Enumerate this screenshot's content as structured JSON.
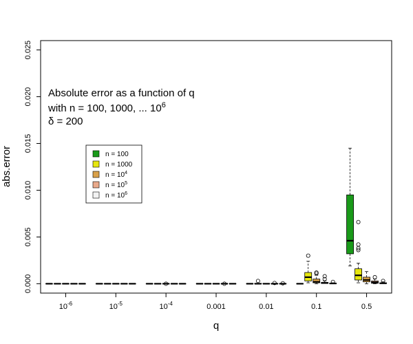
{
  "chart_data": {
    "type": "boxplot",
    "xlabel": "q",
    "ylabel": "abs.error",
    "ylim": [
      -0.001,
      0.026
    ],
    "yticks": [
      "0.000",
      "0.005",
      "0.010",
      "0.015",
      "0.020",
      "0.025"
    ],
    "ytick_values": [
      0,
      0.005,
      0.01,
      0.015,
      0.02,
      0.025
    ],
    "categories": [
      {
        "base": "10",
        "exp": "-6"
      },
      {
        "base": "10",
        "exp": "-5"
      },
      {
        "base": "10",
        "exp": "-4"
      },
      {
        "base": "0.001",
        "exp": ""
      },
      {
        "base": "0.01",
        "exp": ""
      },
      {
        "base": "0.1",
        "exp": ""
      },
      {
        "base": "0.5",
        "exp": ""
      }
    ],
    "annotation": {
      "line1": "Absolute error as a function of q",
      "line2_text": "with n = 100, 1000, ... 10",
      "line2_exp": "6",
      "line3": "δ = 200"
    },
    "legend": {
      "position": "left-middle",
      "entries": [
        {
          "base": "n = 100",
          "exp": ""
        },
        {
          "base": "n = 1000",
          "exp": ""
        },
        {
          "base": "n = 10",
          "exp": "4"
        },
        {
          "base": "n = 10",
          "exp": "5"
        },
        {
          "base": "n = 10",
          "exp": "6"
        }
      ]
    },
    "colors": [
      "#1a9a1a",
      "#e6e60f",
      "#d9a14a",
      "#e9a98a",
      "#f2f2f2"
    ],
    "series": [
      {
        "boxes": [
          {
            "q1": 0,
            "med": 0,
            "q3": 0,
            "lo": 0,
            "hi": 0,
            "out": []
          },
          {
            "q1": 0,
            "med": 0,
            "q3": 0,
            "lo": 0,
            "hi": 0,
            "out": []
          },
          {
            "q1": 0,
            "med": 0,
            "q3": 0,
            "lo": 0,
            "hi": 0,
            "out": []
          },
          {
            "q1": 0,
            "med": 0,
            "q3": 0,
            "lo": 0,
            "hi": 0,
            "out": []
          },
          {
            "q1": 0,
            "med": 0,
            "q3": 0,
            "lo": 0,
            "hi": 0,
            "out": []
          },
          {
            "q1": 0,
            "med": 0,
            "q3": 0,
            "lo": 0,
            "hi": 0,
            "out": []
          },
          {
            "q1": 0.0032,
            "med": 0.0046,
            "q3": 0.0095,
            "lo": 0.0019,
            "hi": 0.0145,
            "out": []
          }
        ]
      },
      {
        "boxes": [
          {
            "q1": 0,
            "med": 0,
            "q3": 0,
            "lo": 0,
            "hi": 0,
            "out": []
          },
          {
            "q1": 0,
            "med": 0,
            "q3": 0,
            "lo": 0,
            "hi": 0,
            "out": []
          },
          {
            "q1": 0,
            "med": 0,
            "q3": 0,
            "lo": 0,
            "hi": 0,
            "out": []
          },
          {
            "q1": 0,
            "med": 0,
            "q3": 0,
            "lo": 0,
            "hi": 0,
            "out": []
          },
          {
            "q1": 0,
            "med": 0,
            "q3": 3e-05,
            "lo": 0,
            "hi": 5e-05,
            "out": [
              0.0003
            ]
          },
          {
            "q1": 0.0003,
            "med": 0.0007,
            "q3": 0.0012,
            "lo": 0.0001,
            "hi": 0.0024,
            "out": [
              0.003
            ]
          },
          {
            "q1": 0.0004,
            "med": 0.0009,
            "q3": 0.0016,
            "lo": 0.0001,
            "hi": 0.0022,
            "out": [
              0.0066,
              0.0042,
              0.0038,
              0.0036
            ]
          }
        ]
      },
      {
        "boxes": [
          {
            "q1": 0,
            "med": 0,
            "q3": 0,
            "lo": 0,
            "hi": 0,
            "out": []
          },
          {
            "q1": 0,
            "med": 0,
            "q3": 0,
            "lo": 0,
            "hi": 0,
            "out": []
          },
          {
            "q1": 0,
            "med": 0,
            "q3": 0,
            "lo": 0,
            "hi": 0,
            "out": [
              0
            ]
          },
          {
            "q1": 0,
            "med": 0,
            "q3": 0,
            "lo": 0,
            "hi": 0,
            "out": []
          },
          {
            "q1": 0,
            "med": 0,
            "q3": 2e-05,
            "lo": 0,
            "hi": 4e-05,
            "out": []
          },
          {
            "q1": 0.0001,
            "med": 0.0002,
            "q3": 0.0005,
            "lo": 0,
            "hi": 0.0009,
            "out": [
              0.0012,
              0.0011
            ]
          },
          {
            "q1": 0.0002,
            "med": 0.0004,
            "q3": 0.0007,
            "lo": 0,
            "hi": 0.0013,
            "out": []
          }
        ]
      },
      {
        "boxes": [
          {
            "q1": 0,
            "med": 0,
            "q3": 0,
            "lo": 0,
            "hi": 0,
            "out": []
          },
          {
            "q1": 0,
            "med": 0,
            "q3": 0,
            "lo": 0,
            "hi": 0,
            "out": []
          },
          {
            "q1": 0,
            "med": 0,
            "q3": 0,
            "lo": 0,
            "hi": 0,
            "out": []
          },
          {
            "q1": 0,
            "med": 0,
            "q3": 0,
            "lo": 0,
            "hi": 0,
            "out": [
              0
            ]
          },
          {
            "q1": 0,
            "med": 0,
            "q3": 2e-05,
            "lo": 0,
            "hi": 4e-05,
            "out": [
              8e-05
            ]
          },
          {
            "q1": 3e-05,
            "med": 8e-05,
            "q3": 0.00015,
            "lo": 0,
            "hi": 0.0003,
            "out": [
              0.0008,
              0.0005
            ]
          },
          {
            "q1": 5e-05,
            "med": 0.00015,
            "q3": 0.0003,
            "lo": 0,
            "hi": 0.0005,
            "out": [
              0.0007
            ]
          }
        ]
      },
      {
        "boxes": [
          {
            "q1": 0,
            "med": 0,
            "q3": 0,
            "lo": 0,
            "hi": 0,
            "out": []
          },
          {
            "q1": 0,
            "med": 0,
            "q3": 0,
            "lo": 0,
            "hi": 0,
            "out": []
          },
          {
            "q1": 0,
            "med": 0,
            "q3": 0,
            "lo": 0,
            "hi": 0,
            "out": []
          },
          {
            "q1": 0,
            "med": 0,
            "q3": 0,
            "lo": 0,
            "hi": 0,
            "out": []
          },
          {
            "q1": 0,
            "med": 0,
            "q3": 1e-05,
            "lo": 0,
            "hi": 2e-05,
            "out": [
              5e-05
            ]
          },
          {
            "q1": 1e-05,
            "med": 3e-05,
            "q3": 6e-05,
            "lo": 0,
            "hi": 0.0001,
            "out": [
              0.0002
            ]
          },
          {
            "q1": 2e-05,
            "med": 5e-05,
            "q3": 0.0001,
            "lo": 0,
            "hi": 0.0002,
            "out": [
              0.0003
            ]
          }
        ]
      }
    ]
  }
}
